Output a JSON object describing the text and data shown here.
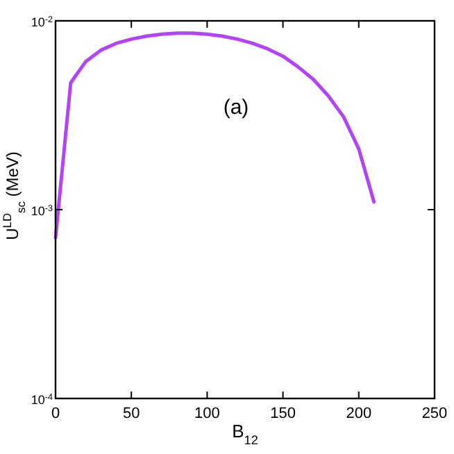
{
  "chart_data": {
    "type": "line",
    "xlabel": "B$_{12}$",
    "ylabel": "U$^{LD}$$_{sc}$ (MeV)",
    "annotations": [
      "(a)"
    ],
    "log": "y",
    "xlim": [
      0,
      250
    ],
    "xticks": [
      0,
      50,
      100,
      150,
      200,
      250
    ],
    "ylim": [
      0.0001,
      0.01
    ],
    "yticks": [
      {
        "value": 0.0001,
        "label": "10$^{-4}$"
      },
      {
        "value": 0.001,
        "label": "10$^{-3}$"
      },
      {
        "value": 0.01,
        "label": "10$^{-2}$"
      }
    ],
    "grid": false,
    "marker": "none",
    "line_style": "solid",
    "x": [
      0,
      10,
      20,
      30,
      40,
      50,
      60,
      70,
      80,
      90,
      100,
      110,
      120,
      130,
      140,
      150,
      160,
      170,
      180,
      190,
      200,
      210
    ],
    "series": [
      {
        "color": "#b344f5",
        "values": [
          0.00071,
          0.0047,
          0.0061,
          0.007,
          0.0076,
          0.008,
          0.0083,
          0.0085,
          0.0086,
          0.0086,
          0.0085,
          0.0083,
          0.008,
          0.0076,
          0.0071,
          0.0065,
          0.0057,
          0.0049,
          0.004,
          0.0031,
          0.0021,
          0.0011
        ]
      }
    ]
  }
}
